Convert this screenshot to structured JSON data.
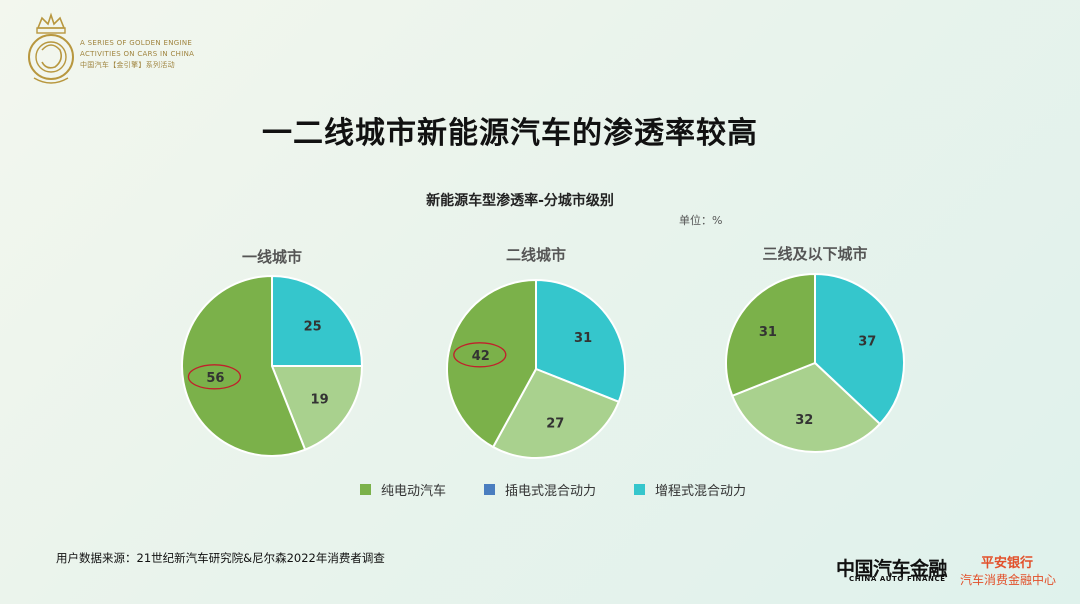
{
  "logo": {
    "line1": "A SERIES OF GOLDEN ENGINE",
    "line2": "ACTIVITIES ON CARS IN CHINA",
    "line3": "中国汽车【金引擎】系列活动"
  },
  "page_title": "一二线城市新能源汽车的渗透率较高",
  "chart_title": "新能源车型渗透率-分城市级别",
  "unit": "单位：%",
  "legend": [
    {
      "label": "纯电动汽车",
      "color": "#7bb14a"
    },
    {
      "label": "插电式混合动力",
      "color": "#4a7dbf"
    },
    {
      "label": "增程式混合动力",
      "color": "#35c6cc"
    }
  ],
  "colors": {
    "pure_ev": "#7bb14a",
    "phev_light": "#a9d18e",
    "erev": "#35c6cc",
    "highlight": "#c0212b"
  },
  "chart_data": [
    {
      "type": "pie",
      "title": "一线城市",
      "slices": [
        {
          "label": "增程式混合动力",
          "value": 25,
          "color": "#35c6cc"
        },
        {
          "label": "",
          "value": 19,
          "color": "#a9d18e"
        },
        {
          "label": "纯电动汽车",
          "value": 56,
          "color": "#7bb14a",
          "highlighted": true
        }
      ]
    },
    {
      "type": "pie",
      "title": "二线城市",
      "slices": [
        {
          "label": "增程式混合动力",
          "value": 31,
          "color": "#35c6cc"
        },
        {
          "label": "",
          "value": 27,
          "color": "#a9d18e"
        },
        {
          "label": "纯电动汽车",
          "value": 42,
          "color": "#7bb14a",
          "highlighted": true
        }
      ]
    },
    {
      "type": "pie",
      "title": "三线及以下城市",
      "slices": [
        {
          "label": "增程式混合动力",
          "value": 37,
          "color": "#35c6cc"
        },
        {
          "label": "",
          "value": 32,
          "color": "#a9d18e"
        },
        {
          "label": "纯电动汽车",
          "value": 31,
          "color": "#7bb14a"
        }
      ]
    }
  ],
  "source": "用户数据来源：21世纪新汽车研究院&尼尔森2022年消费者调查",
  "footer": {
    "brand_cn": "中国汽车金融",
    "brand_en": "CHINA AUTO FINANCE",
    "bank": "平安银行",
    "bank_sub": "汽车消费金融中心"
  }
}
